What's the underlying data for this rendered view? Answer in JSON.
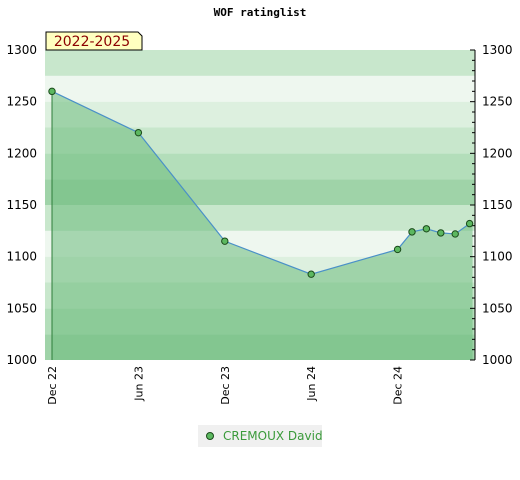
{
  "chart_data": {
    "type": "area",
    "title": "WOF ratinglist",
    "badge": "2022-2025",
    "x": [
      "2022-12",
      "2023-06",
      "2023-12",
      "2024-06",
      "2024-12",
      "2025-01",
      "2025-02",
      "2025-03",
      "2025-04",
      "2025-05"
    ],
    "x_tick_labels": [
      "Dec 22",
      "Jun 23",
      "Dec 23",
      "Jun 24",
      "Dec 24"
    ],
    "series": [
      {
        "name": "CREMOUX David",
        "values": [
          1260,
          1220,
          1115,
          1083,
          1107,
          1124,
          1127,
          1123,
          1122,
          1132
        ]
      }
    ],
    "ylim": [
      1000,
      1300
    ],
    "y_ticks": [
      1000,
      1050,
      1100,
      1150,
      1200,
      1250,
      1300
    ],
    "colors": {
      "line": "#4a90c8",
      "fill": "#7cc48a",
      "marker": "#5cb860",
      "marker_edge": "#1a4a1a",
      "badge_bg": "#ffffc0",
      "legend_text": "#3a9a3a"
    },
    "legend_position": "bottom-center",
    "grid": true
  }
}
